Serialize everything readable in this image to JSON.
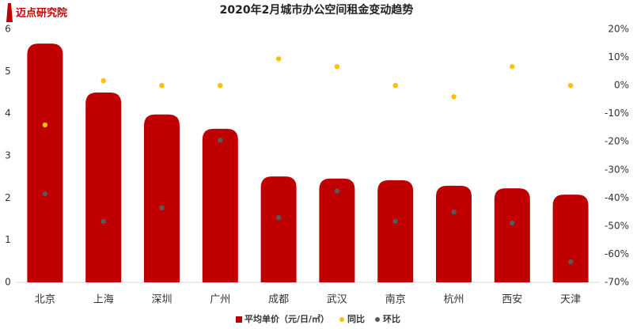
{
  "logo": "迈点研究院",
  "chart_data": {
    "type": "bar",
    "title": "2020年2月城市办公空间租金变动趋势",
    "categories": [
      "北京",
      "上海",
      "深圳",
      "广州",
      "成都",
      "武汉",
      "南京",
      "杭州",
      "西安",
      "天津"
    ],
    "series": [
      {
        "name": "平均单价（元/日/㎡）",
        "type": "bar",
        "color": "#c00000",
        "values": [
          5.66,
          4.5,
          3.98,
          3.64,
          2.51,
          2.46,
          2.42,
          2.29,
          2.23,
          2.08
        ]
      },
      {
        "name": "同比",
        "type": "scatter",
        "axis": "y2",
        "color": "#ffc000",
        "values": [
          -14,
          1.7,
          0,
          0,
          9.5,
          6.7,
          0,
          -4,
          6.7,
          0
        ]
      },
      {
        "name": "环比",
        "type": "scatter",
        "axis": "y2",
        "color": "#595959",
        "values": [
          -38.5,
          -48.3,
          -43.5,
          -19.4,
          -47,
          -37.5,
          -48.3,
          -45,
          -48.9,
          -62.7
        ]
      }
    ],
    "ylim": [
      0,
      6
    ],
    "yticks": [
      0,
      1,
      2,
      3,
      4,
      5,
      6
    ],
    "y2lim": [
      -70,
      20
    ],
    "y2ticks": [
      {
        "value": 20,
        "label": "20%"
      },
      {
        "value": 10,
        "label": "10%"
      },
      {
        "value": 0,
        "label": "0%"
      },
      {
        "value": -10,
        "label": "-10%"
      },
      {
        "value": -20,
        "label": "-20%"
      },
      {
        "value": -30,
        "label": "-30%"
      },
      {
        "value": -40,
        "label": "-40%"
      },
      {
        "value": -50,
        "label": "-50%"
      },
      {
        "value": -60,
        "label": "-60%"
      },
      {
        "value": -70,
        "label": "-70%"
      }
    ],
    "legend": "bottom"
  }
}
